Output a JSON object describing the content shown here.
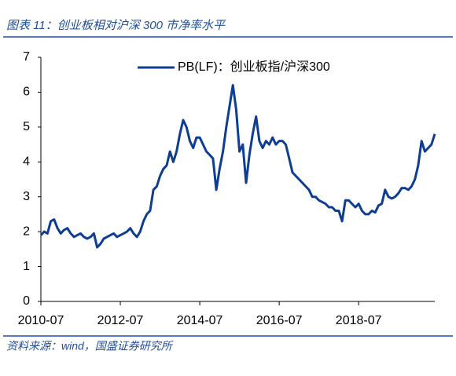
{
  "chart_data": {
    "type": "line",
    "title": "图表 11：创业板相对沪深 300 市净率水平",
    "source": "资料来源：wind，国盛证券研究所",
    "x": [
      "2010-07",
      "2010-08",
      "2010-09",
      "2010-10",
      "2010-11",
      "2010-12",
      "2011-01",
      "2011-02",
      "2011-03",
      "2011-04",
      "2011-05",
      "2011-06",
      "2011-07",
      "2011-08",
      "2011-09",
      "2011-10",
      "2011-11",
      "2011-12",
      "2012-01",
      "2012-02",
      "2012-03",
      "2012-04",
      "2012-05",
      "2012-06",
      "2012-07",
      "2012-08",
      "2012-09",
      "2012-10",
      "2012-11",
      "2012-12",
      "2013-01",
      "2013-02",
      "2013-03",
      "2013-04",
      "2013-05",
      "2013-06",
      "2013-07",
      "2013-08",
      "2013-09",
      "2013-10",
      "2013-11",
      "2013-12",
      "2014-01",
      "2014-02",
      "2014-03",
      "2014-04",
      "2014-05",
      "2014-06",
      "2014-07",
      "2014-08",
      "2014-09",
      "2014-10",
      "2014-11",
      "2014-12",
      "2015-01",
      "2015-02",
      "2015-03",
      "2015-04",
      "2015-05",
      "2015-06",
      "2015-07",
      "2015-08",
      "2015-09",
      "2015-10",
      "2015-11",
      "2015-12",
      "2016-01",
      "2016-02",
      "2016-03",
      "2016-04",
      "2016-05",
      "2016-06",
      "2016-07",
      "2016-08",
      "2016-09",
      "2016-10",
      "2016-11",
      "2016-12",
      "2017-01",
      "2017-02",
      "2017-03",
      "2017-04",
      "2017-05",
      "2017-06",
      "2017-07",
      "2017-08",
      "2017-09",
      "2017-10",
      "2017-11",
      "2017-12",
      "2018-01",
      "2018-02",
      "2018-03",
      "2018-04",
      "2018-05",
      "2018-06",
      "2018-07",
      "2018-08",
      "2018-09",
      "2018-10",
      "2018-11",
      "2018-12",
      "2019-01",
      "2019-02",
      "2019-03",
      "2019-04",
      "2019-05",
      "2019-06",
      "2019-07",
      "2019-08",
      "2019-09",
      "2019-10",
      "2019-11",
      "2019-12",
      "2020-01",
      "2020-02",
      "2020-03",
      "2020-04",
      "2020-05",
      "2020-06"
    ],
    "series": [
      {
        "name": "PB(LF)：创业板指/沪深300",
        "color": "#0e3d91",
        "values": [
          1.9,
          2.0,
          1.95,
          2.3,
          2.35,
          2.1,
          1.95,
          2.05,
          2.1,
          1.95,
          1.85,
          1.9,
          1.95,
          1.85,
          1.8,
          1.85,
          1.95,
          1.55,
          1.65,
          1.8,
          1.85,
          1.9,
          1.95,
          1.85,
          1.9,
          1.95,
          2.0,
          2.1,
          1.95,
          1.85,
          2.0,
          2.3,
          2.5,
          2.6,
          3.2,
          3.3,
          3.6,
          3.8,
          3.9,
          4.3,
          4.0,
          4.3,
          4.8,
          5.2,
          5.0,
          4.6,
          4.4,
          4.7,
          4.7,
          4.5,
          4.3,
          4.2,
          4.1,
          3.2,
          3.8,
          4.3,
          5.0,
          5.6,
          6.2,
          5.5,
          4.3,
          4.5,
          3.4,
          4.2,
          4.8,
          5.3,
          4.6,
          4.4,
          4.6,
          4.5,
          4.7,
          4.5,
          4.6,
          4.6,
          4.5,
          4.1,
          3.7,
          3.6,
          3.5,
          3.4,
          3.3,
          3.2,
          3.0,
          3.0,
          2.9,
          2.85,
          2.8,
          2.7,
          2.7,
          2.6,
          2.6,
          2.3,
          2.9,
          2.9,
          2.8,
          2.7,
          2.8,
          2.6,
          2.5,
          2.5,
          2.6,
          2.55,
          2.75,
          2.8,
          3.2,
          3.0,
          2.95,
          3.0,
          3.1,
          3.25,
          3.25,
          3.2,
          3.3,
          3.5,
          3.9,
          4.6,
          4.3,
          4.4,
          4.5,
          4.8
        ]
      }
    ],
    "xlim": [
      "2010-07",
      "2020-06"
    ],
    "xticks": [
      "2010-07",
      "2012-07",
      "2014-07",
      "2016-07",
      "2018-07"
    ],
    "ylim": [
      0,
      7
    ],
    "yticks": [
      0,
      1,
      2,
      3,
      4,
      5,
      6,
      7
    ],
    "grid": false,
    "legend": "top"
  }
}
